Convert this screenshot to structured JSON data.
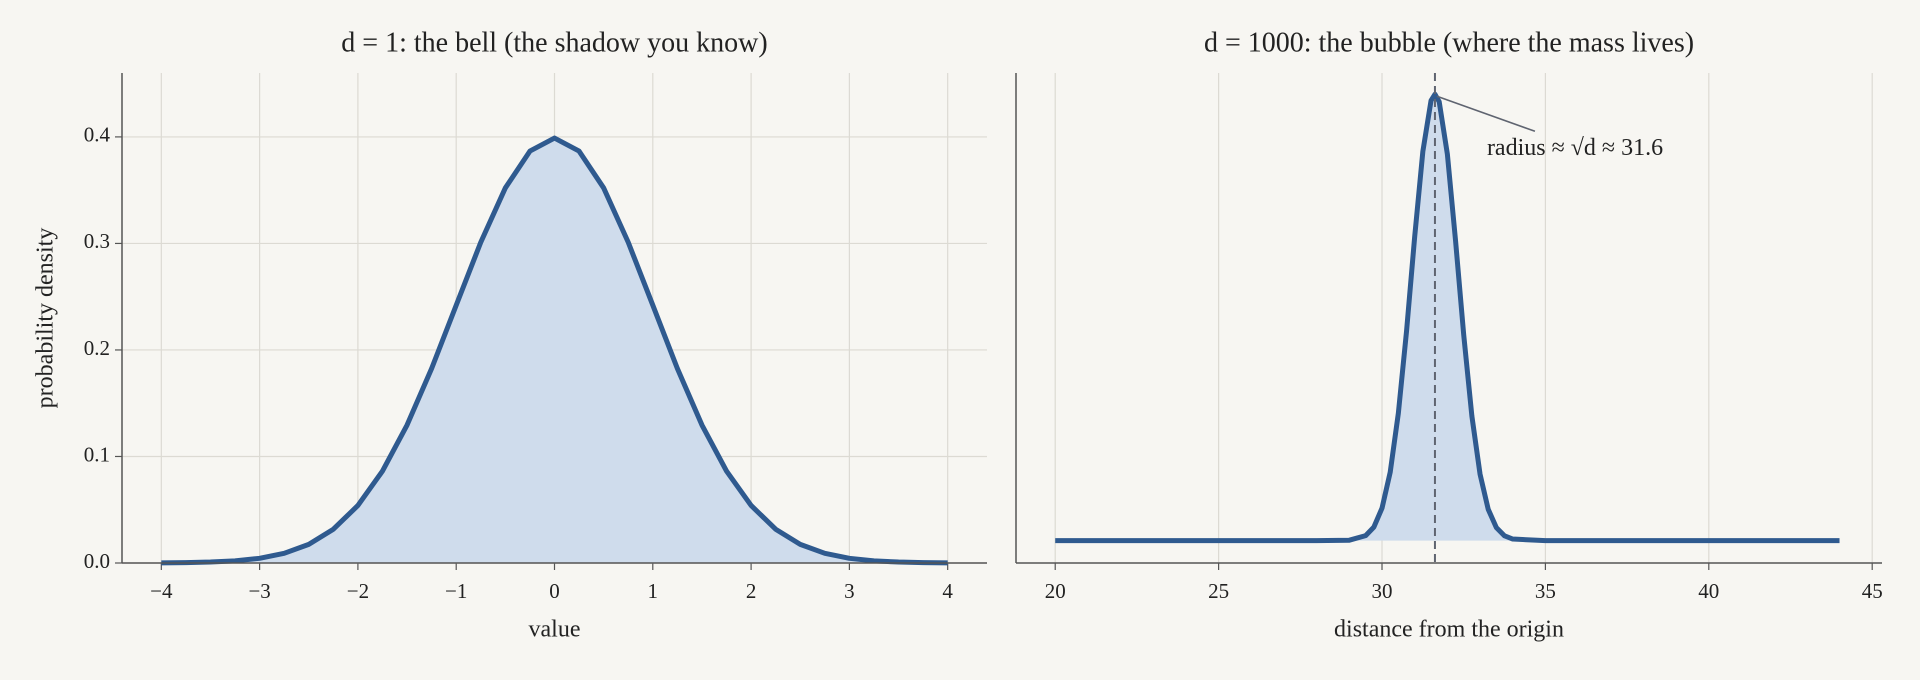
{
  "chart_data": [
    {
      "type": "area-line",
      "title": "d = 1: the bell (the shadow you know)",
      "x_label": "value",
      "y_label": "probability density",
      "x": [
        -4,
        -3.75,
        -3.5,
        -3.25,
        -3,
        -2.75,
        -2.5,
        -2.25,
        -2,
        -1.75,
        -1.5,
        -1.25,
        -1,
        -0.75,
        -0.5,
        -0.25,
        0,
        0.25,
        0.5,
        0.75,
        1,
        1.25,
        1.5,
        1.75,
        2,
        2.25,
        2.5,
        2.75,
        3,
        3.25,
        3.5,
        3.75,
        4
      ],
      "values": [
        0.0001,
        0.0004,
        0.0009,
        0.002,
        0.0044,
        0.0091,
        0.0175,
        0.0317,
        0.054,
        0.0863,
        0.1295,
        0.1826,
        0.242,
        0.3011,
        0.3521,
        0.3867,
        0.3989,
        0.3867,
        0.3521,
        0.3011,
        0.242,
        0.1826,
        0.1295,
        0.0863,
        0.054,
        0.0317,
        0.0175,
        0.0091,
        0.0044,
        0.002,
        0.0009,
        0.0004,
        0.0001
      ],
      "color": "#2f5a8f",
      "fill_color": "#cfdcec",
      "xlim": [
        -4.4,
        4.4
      ],
      "ylim": [
        0,
        0.46
      ],
      "xticks": [
        {
          "value": -4,
          "label": "−4"
        },
        {
          "value": -3,
          "label": "−3"
        },
        {
          "value": -2,
          "label": "−2"
        },
        {
          "value": -1,
          "label": "−1"
        },
        0,
        1,
        2,
        3,
        4
      ],
      "yticks": [
        {
          "value": 0,
          "label": "0.0"
        },
        0.1,
        0.2,
        0.3,
        0.4
      ],
      "grid": "both"
    },
    {
      "type": "area-line",
      "title": "d = 1000: the bubble (where the mass lives)",
      "x_label": "distance from the origin",
      "annotation": "radius ≈ √d ≈ 31.6",
      "vline": 31.62,
      "x": [
        20,
        25,
        28,
        29,
        29.5,
        29.75,
        30,
        30.25,
        30.5,
        30.75,
        31,
        31.25,
        31.5,
        31.62,
        31.75,
        32,
        32.25,
        32.5,
        32.75,
        33,
        33.25,
        33.5,
        33.75,
        34,
        35,
        40,
        44
      ],
      "values": [
        0.021,
        0.021,
        0.021,
        0.0214,
        0.0257,
        0.0337,
        0.0515,
        0.0851,
        0.1406,
        0.2175,
        0.3064,
        0.3864,
        0.4341,
        0.44,
        0.433,
        0.3838,
        0.3027,
        0.2142,
        0.1379,
        0.0834,
        0.0504,
        0.0332,
        0.0255,
        0.0225,
        0.021,
        0.021,
        0.021
      ],
      "color": "#2f5a8f",
      "fill_color": "#cfdcec",
      "fill_base": 0.021,
      "xlim": [
        18.8,
        45.3
      ],
      "ylim": [
        0,
        0.46
      ],
      "xticks": [
        20,
        25,
        30,
        35,
        40,
        45
      ],
      "grid": "x"
    }
  ]
}
